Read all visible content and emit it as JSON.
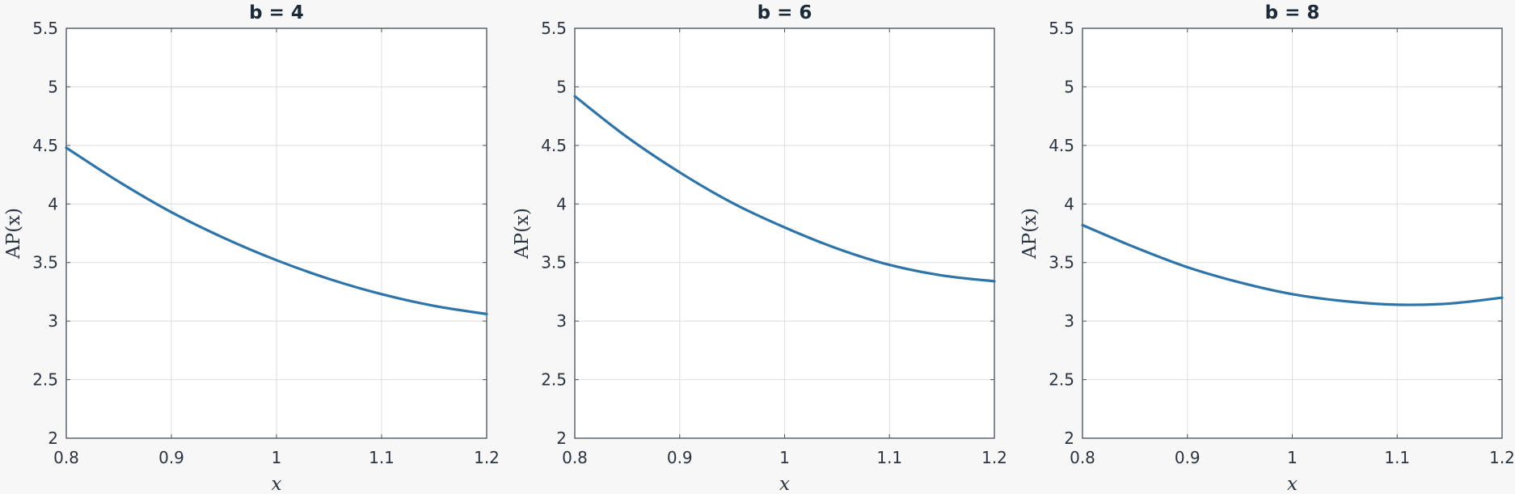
{
  "colors": {
    "line": "#2e74a8",
    "background": "#f7f7f7"
  },
  "chart_data": [
    {
      "type": "line",
      "title": "b = 4",
      "xlabel": "x",
      "ylabel": "AP(x)",
      "xlim": [
        0.8,
        1.2
      ],
      "ylim": [
        2,
        5.5
      ],
      "xticks": [
        "0.8",
        "0.9",
        "1",
        "1.1",
        "1.2"
      ],
      "yticks": [
        "2",
        "2.5",
        "3",
        "3.5",
        "4",
        "4.5",
        "5",
        "5.5"
      ],
      "grid": true,
      "series": [
        {
          "x": [
            0.8,
            0.85,
            0.9,
            0.95,
            1.0,
            1.05,
            1.1,
            1.15,
            1.2
          ],
          "y": [
            4.48,
            4.19,
            3.93,
            3.71,
            3.52,
            3.36,
            3.23,
            3.13,
            3.06
          ]
        }
      ]
    },
    {
      "type": "line",
      "title": "b = 6",
      "xlabel": "x",
      "ylabel": "AP(x)",
      "xlim": [
        0.8,
        1.2
      ],
      "ylim": [
        2,
        5.5
      ],
      "xticks": [
        "0.8",
        "0.9",
        "1",
        "1.1",
        "1.2"
      ],
      "yticks": [
        "2",
        "2.5",
        "3",
        "3.5",
        "4",
        "4.5",
        "5",
        "5.5"
      ],
      "grid": true,
      "series": [
        {
          "x": [
            0.8,
            0.85,
            0.9,
            0.95,
            1.0,
            1.05,
            1.1,
            1.15,
            1.2
          ],
          "y": [
            4.92,
            4.57,
            4.27,
            4.01,
            3.8,
            3.62,
            3.48,
            3.39,
            3.34
          ]
        }
      ]
    },
    {
      "type": "line",
      "title": "b = 8",
      "xlabel": "x",
      "ylabel": "AP(x)",
      "xlim": [
        0.8,
        1.2
      ],
      "ylim": [
        2,
        5.5
      ],
      "xticks": [
        "0.8",
        "0.9",
        "1",
        "1.1",
        "1.2"
      ],
      "yticks": [
        "2",
        "2.5",
        "3",
        "3.5",
        "4",
        "4.5",
        "5",
        "5.5"
      ],
      "grid": true,
      "series": [
        {
          "x": [
            0.8,
            0.85,
            0.9,
            0.95,
            1.0,
            1.05,
            1.1,
            1.15,
            1.2
          ],
          "y": [
            3.82,
            3.63,
            3.46,
            3.33,
            3.23,
            3.17,
            3.14,
            3.15,
            3.2
          ]
        }
      ]
    }
  ]
}
